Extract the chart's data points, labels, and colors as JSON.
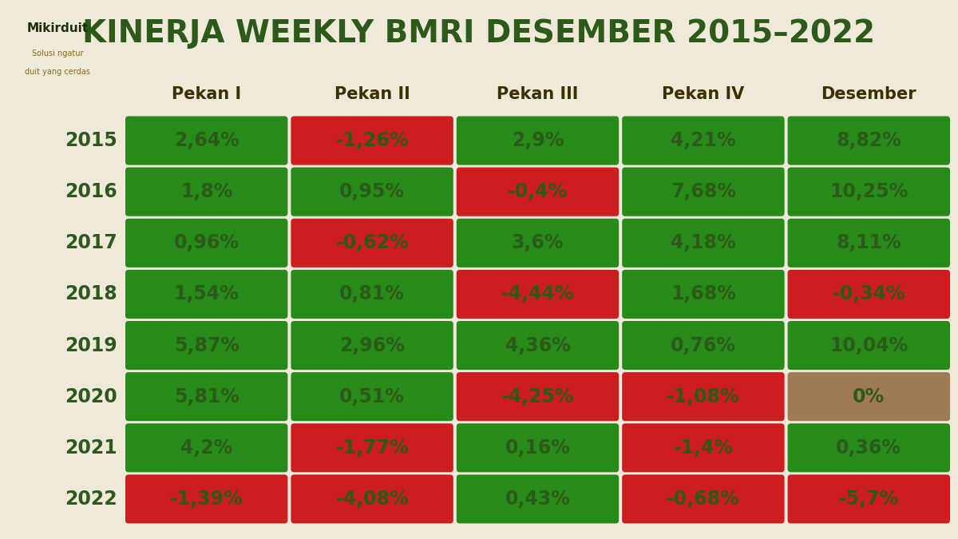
{
  "title": "KINERJA WEEKLY BMRI DESEMBER 2015–2022",
  "background_color": "#EEE9D8",
  "title_color": "#2D5A1B",
  "header_color": "#3D3000",
  "year_color": "#2D5A1B",
  "logo_text": "Mikirduit",
  "logo_sub1": "Solusi ngatur",
  "logo_sub2": "duit yang cerdas",
  "logo_text_color": "#1A2E0A",
  "logo_sub_color": "#8B6C14",
  "columns": [
    "Pekan I",
    "Pekan II",
    "Pekan III",
    "Pekan IV",
    "Desember"
  ],
  "years": [
    "2015",
    "2016",
    "2017",
    "2018",
    "2019",
    "2020",
    "2021",
    "2022"
  ],
  "data": [
    [
      "2,64%",
      "-1,26%",
      "2,9%",
      "4,21%",
      "8,82%"
    ],
    [
      "1,8%",
      "0,95%",
      "-0,4%",
      "7,68%",
      "10,25%"
    ],
    [
      "0,96%",
      "-0,62%",
      "3,6%",
      "4,18%",
      "8,11%"
    ],
    [
      "1,54%",
      "0,81%",
      "-4,44%",
      "1,68%",
      "-0,34%"
    ],
    [
      "5,87%",
      "2,96%",
      "4,36%",
      "0,76%",
      "10,04%"
    ],
    [
      "5,81%",
      "0,51%",
      "-4,25%",
      "-1,08%",
      "0%"
    ],
    [
      "4,2%",
      "-1,77%",
      "0,16%",
      "-1,4%",
      "0,36%"
    ],
    [
      "-1,39%",
      "-4,08%",
      "0,43%",
      "-0,68%",
      "-5,7%"
    ]
  ],
  "colors": [
    [
      "green",
      "red",
      "green",
      "green",
      "green"
    ],
    [
      "green",
      "green",
      "red",
      "green",
      "green"
    ],
    [
      "green",
      "red",
      "green",
      "green",
      "green"
    ],
    [
      "green",
      "green",
      "red",
      "green",
      "red"
    ],
    [
      "green",
      "green",
      "green",
      "green",
      "green"
    ],
    [
      "green",
      "green",
      "red",
      "red",
      "neutral"
    ],
    [
      "green",
      "red",
      "green",
      "red",
      "green"
    ],
    [
      "red",
      "red",
      "green",
      "red",
      "red"
    ]
  ],
  "green_color": "#278B1A",
  "red_color": "#CC1E1E",
  "neutral_color": "#9E7B52",
  "cell_text_color": "#2D5A1B",
  "header_font_size": 15,
  "cell_font_size": 17,
  "year_font_size": 17,
  "title_font_size": 28
}
